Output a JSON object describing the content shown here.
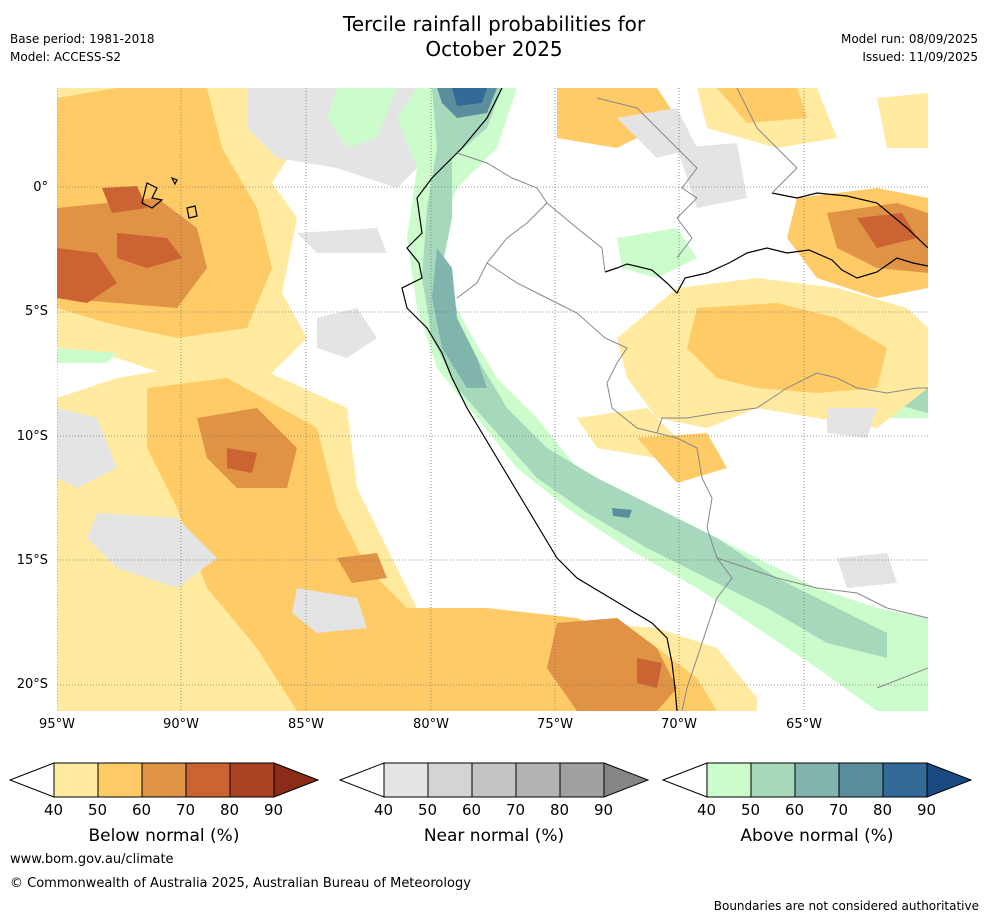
{
  "header": {
    "title_line1": "Tercile rainfall probabilities for",
    "title_line2": "October 2025",
    "base_period": "Base period: 1981-2018",
    "model": "Model: ACCESS-S2",
    "model_run": "Model run: 08/09/2025",
    "issued": "Issued: 11/09/2025"
  },
  "map": {
    "lat_labels": [
      "0°",
      "5°S",
      "10°S",
      "15°S",
      "20°S"
    ],
    "lon_labels": [
      "95°W",
      "90°W",
      "85°W",
      "80°W",
      "75°W",
      "70°W",
      "65°W"
    ]
  },
  "colorbars": [
    {
      "name": "below",
      "title": "Below normal (%)",
      "ticks": [
        "40",
        "50",
        "60",
        "70",
        "80",
        "90"
      ],
      "colors": [
        "#ffeaa0",
        "#fecb66",
        "#e09245",
        "#cb6432",
        "#ab4424",
        "#8a2c18"
      ]
    },
    {
      "name": "near",
      "title": "Near normal (%)",
      "ticks": [
        "40",
        "50",
        "60",
        "70",
        "80",
        "90"
      ],
      "colors": [
        "#e4e4e4",
        "#d4d4d4",
        "#c4c4c4",
        "#b3b3b3",
        "#a0a0a0",
        "#868686"
      ]
    },
    {
      "name": "above",
      "title": "Above normal (%)",
      "ticks": [
        "40",
        "50",
        "60",
        "70",
        "80",
        "90"
      ],
      "colors": [
        "#ccfccc",
        "#a6d8bc",
        "#80b4ac",
        "#5b8e9c",
        "#336a98",
        "#1a4a80"
      ]
    }
  ],
  "footer": {
    "website": "www.bom.gov.au/climate",
    "copyright": "© Commonwealth of Australia 2025, Australian Bureau of Meteorology",
    "disclaimer": "Boundaries are not considered authoritative"
  }
}
